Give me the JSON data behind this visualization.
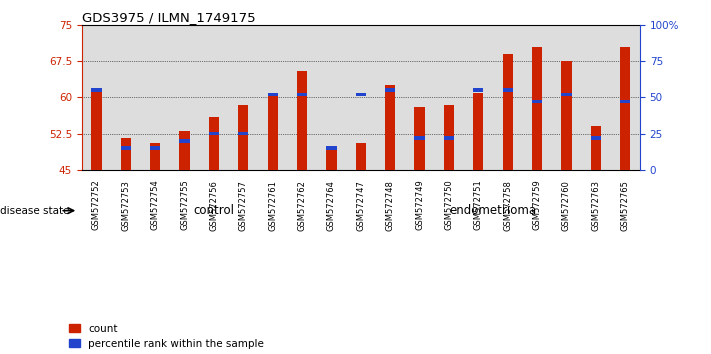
{
  "title": "GDS3975 / ILMN_1749175",
  "samples": [
    "GSM572752",
    "GSM572753",
    "GSM572754",
    "GSM572755",
    "GSM572756",
    "GSM572757",
    "GSM572761",
    "GSM572762",
    "GSM572764",
    "GSM572747",
    "GSM572748",
    "GSM572749",
    "GSM572750",
    "GSM572751",
    "GSM572758",
    "GSM572759",
    "GSM572760",
    "GSM572763",
    "GSM572765"
  ],
  "counts": [
    61.5,
    51.5,
    50.5,
    53.0,
    56.0,
    58.5,
    60.5,
    65.5,
    49.5,
    50.5,
    62.5,
    58.0,
    58.5,
    61.0,
    69.0,
    70.5,
    67.5,
    54.0,
    70.5
  ],
  "percentile_ranks": [
    55,
    15,
    15,
    20,
    25,
    25,
    52,
    52,
    15,
    52,
    55,
    22,
    22,
    55,
    55,
    47,
    52,
    22,
    47
  ],
  "control_count": 9,
  "endometrioma_count": 10,
  "ylim_left": [
    45,
    75
  ],
  "ylim_right": [
    0,
    100
  ],
  "yticks_left": [
    45,
    52.5,
    60,
    67.5,
    75
  ],
  "yticks_right": [
    0,
    25,
    50,
    75,
    100
  ],
  "ytick_labels_left": [
    "45",
    "52.5",
    "60",
    "67.5",
    "75"
  ],
  "ytick_labels_right": [
    "0",
    "25",
    "50",
    "75",
    "100%"
  ],
  "bar_color": "#cc2200",
  "blue_color": "#2244cc",
  "control_bg": "#ccffcc",
  "endometrioma_bg": "#44cc44",
  "axis_bg": "#dddddd",
  "legend_count": "count",
  "legend_percentile": "percentile rank within the sample",
  "disease_state_label": "disease state",
  "control_label": "control",
  "endometrioma_label": "endometrioma"
}
